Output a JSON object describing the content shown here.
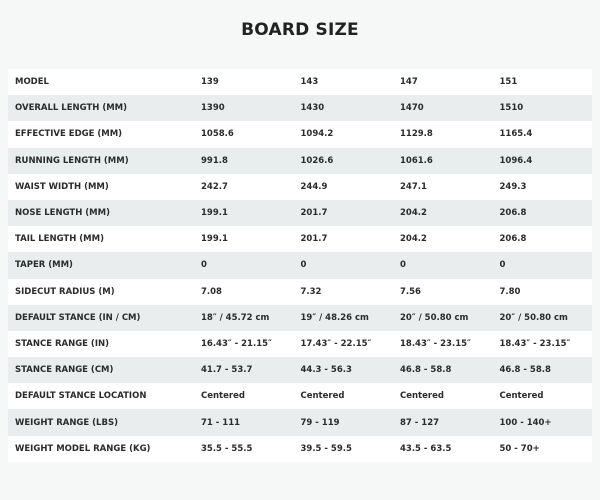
{
  "header": {
    "title": "BOARD SIZE"
  },
  "table": {
    "rows": [
      [
        "MODEL",
        "139",
        "143",
        "147",
        "151"
      ],
      [
        "OVERALL LENGTH (MM)",
        "1390",
        "1430",
        "1470",
        "1510"
      ],
      [
        "EFFECTIVE EDGE (MM)",
        "1058.6",
        "1094.2",
        "1129.8",
        "1165.4"
      ],
      [
        "RUNNING LENGTH (MM)",
        "991.8",
        "1026.6",
        "1061.6",
        "1096.4"
      ],
      [
        "WAIST WIDTH (MM)",
        "242.7",
        "244.9",
        "247.1",
        "249.3"
      ],
      [
        "NOSE LENGTH (MM)",
        "199.1",
        "201.7",
        "204.2",
        "206.8"
      ],
      [
        "TAIL LENGTH (MM)",
        "199.1",
        "201.7",
        "204.2",
        "206.8"
      ],
      [
        "TAPER (MM)",
        "0",
        "0",
        "0",
        "0"
      ],
      [
        "SIDECUT RADIUS (M)",
        "7.08",
        "7.32",
        "7.56",
        "7.80"
      ],
      [
        "DEFAULT STANCE (IN / CM)",
        "18″ / 45.72 cm",
        "19″ / 48.26 cm",
        "20″ / 50.80 cm",
        "20″ / 50.80 cm"
      ],
      [
        "STANCE RANGE (IN)",
        "16.43″ - 21.15″",
        "17.43″ - 22.15″",
        "18.43″ - 23.15″",
        "18.43″ - 23.15″"
      ],
      [
        "STANCE RANGE (CM)",
        "41.7 - 53.7",
        "44.3 - 56.3",
        "46.8 - 58.8",
        "46.8 - 58.8"
      ],
      [
        "DEFAULT STANCE LOCATION",
        "Centered",
        "Centered",
        "Centered",
        "Centered"
      ],
      [
        "WEIGHT RANGE (LBS)",
        "71 - 111",
        "79 - 119",
        "87 - 127",
        "100 - 140+"
      ],
      [
        "WEIGHT MODEL RANGE (KG)",
        "35.5 - 55.5",
        "39.5 - 59.5",
        "43.5 - 63.5",
        "50 - 70+"
      ]
    ]
  }
}
